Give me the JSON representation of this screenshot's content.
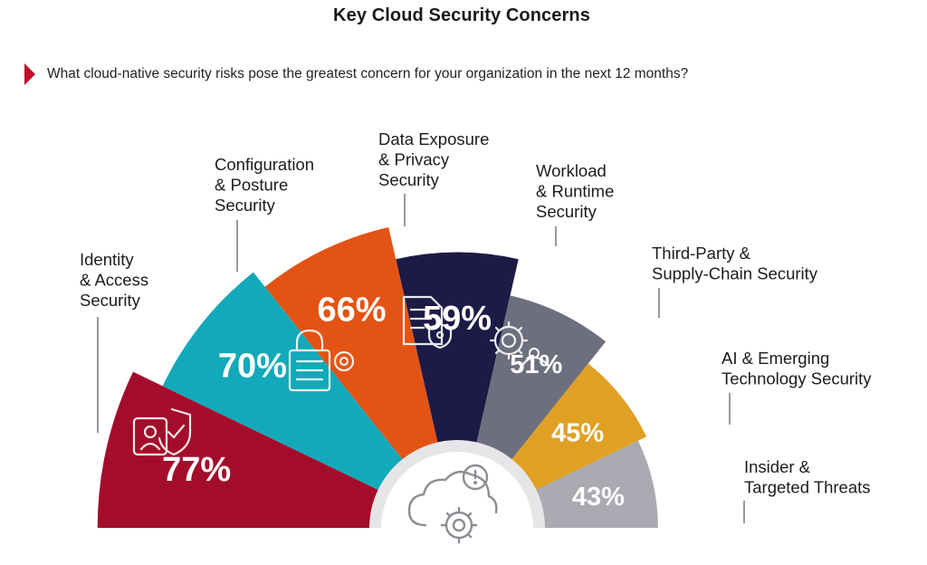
{
  "title": "Key Cloud Security Concerns",
  "question": "What cloud-native security risks pose the greatest concern for your organization in the next 12 months?",
  "chart_data": {
    "type": "bar",
    "layout": "radial-fan",
    "categories": [
      "Identity & Access Security",
      "Configuration & Posture Security",
      "Data Exposure & Privacy Security",
      "Workload & Runtime Security",
      "Third-Party & Supply-Chain Security",
      "AI & Emerging Technology Security",
      "Insider & Targeted Threats"
    ],
    "values": [
      77,
      70,
      66,
      59,
      51,
      45,
      43
    ],
    "value_labels": [
      "77%",
      "70%",
      "66%",
      "59%",
      "51%",
      "45%",
      "43%"
    ],
    "label_lines": [
      [
        "Identity",
        "& Access",
        "Security"
      ],
      [
        "Configuration",
        "& Posture",
        "Security"
      ],
      [
        "Data Exposure",
        "& Privacy",
        "Security"
      ],
      [
        "Workload",
        "& Runtime",
        "Security"
      ],
      [
        "Third-Party &",
        "Supply-Chain Security"
      ],
      [
        "AI & Emerging",
        "Technology Security"
      ],
      [
        "Insider &",
        "Targeted Threats"
      ]
    ],
    "colors": [
      "#a30d2b",
      "#12a9ba",
      "#e35314",
      "#1d1a46",
      "#6d6f7f",
      "#e0a024",
      "#a9aab2"
    ],
    "icons": [
      "user-shield-icon",
      "padlock-gear-icon",
      "document-shield-icon",
      "gear-user-icon",
      "none",
      "none",
      "none"
    ],
    "center_icon": "cloud-alert-gear-icon",
    "unit": "%",
    "ylim": [
      0,
      100
    ]
  }
}
